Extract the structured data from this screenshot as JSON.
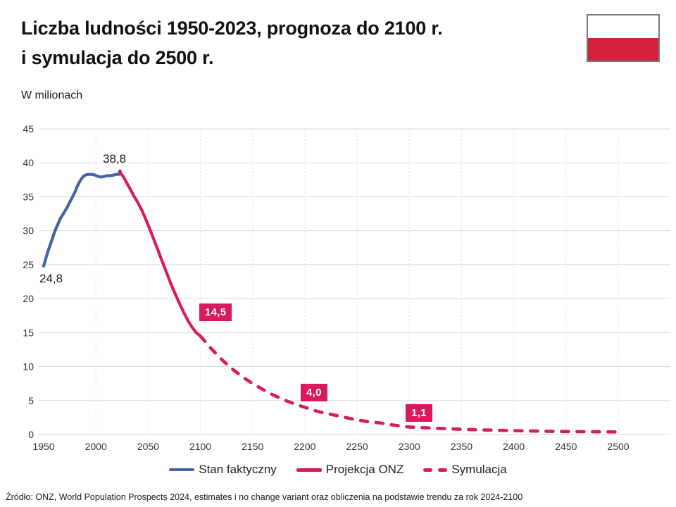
{
  "header": {
    "title_line1": "Liczba ludności 1950-2023, prognoza do 2100 r.",
    "title_line2": "i symulacja do 2500 r.",
    "subtitle": "W milionach"
  },
  "flag": {
    "country": "Poland",
    "top_color": "#ffffff",
    "bottom_color": "#d4213d",
    "border_color": "#7a7a7a"
  },
  "footer": {
    "source": "Źródło: ONZ, World Population Prospects 2024, estimates i no change variant oraz obliczenia na podstawie trendu za rok 2024-2100"
  },
  "chart_data": {
    "type": "line",
    "title": "Liczba ludności 1950-2023, prognoza do 2100 r. i symulacja do 2500 r.",
    "xlabel": "",
    "ylabel": "W milionach",
    "xlim": [
      1950,
      2500
    ],
    "ylim": [
      0,
      45
    ],
    "x_ticks": [
      1950,
      2000,
      2050,
      2100,
      2150,
      2200,
      2250,
      2300,
      2350,
      2400,
      2450,
      2500
    ],
    "y_ticks": [
      0,
      5,
      10,
      15,
      20,
      25,
      30,
      35,
      40,
      45
    ],
    "grid": true,
    "legend_position": "bottom",
    "colors": {
      "actual": "#4661a4",
      "projection": "#d91a5f",
      "grid_h": "#d9d9d9",
      "grid_v": "#e1e1e1",
      "tick_label": "#333333"
    },
    "series": [
      {
        "name": "Stan faktyczny",
        "color": "#4661a4",
        "style": "solid",
        "points": [
          [
            1950,
            24.8
          ],
          [
            1952,
            25.9
          ],
          [
            1954,
            26.9
          ],
          [
            1956,
            27.8
          ],
          [
            1958,
            28.7
          ],
          [
            1960,
            29.6
          ],
          [
            1962,
            30.4
          ],
          [
            1964,
            31.1
          ],
          [
            1966,
            31.8
          ],
          [
            1968,
            32.3
          ],
          [
            1970,
            32.8
          ],
          [
            1972,
            33.3
          ],
          [
            1974,
            33.9
          ],
          [
            1976,
            34.5
          ],
          [
            1978,
            35.1
          ],
          [
            1980,
            35.7
          ],
          [
            1982,
            36.5
          ],
          [
            1984,
            37.1
          ],
          [
            1986,
            37.6
          ],
          [
            1988,
            38.0
          ],
          [
            1990,
            38.2
          ],
          [
            1993,
            38.3
          ],
          [
            1996,
            38.3
          ],
          [
            1999,
            38.2
          ],
          [
            2002,
            38.0
          ],
          [
            2005,
            37.9
          ],
          [
            2008,
            38.0
          ],
          [
            2011,
            38.1
          ],
          [
            2014,
            38.1
          ],
          [
            2017,
            38.2
          ],
          [
            2020,
            38.3
          ],
          [
            2022,
            38.3
          ],
          [
            2023,
            38.8
          ]
        ]
      },
      {
        "name": "Projekcja ONZ",
        "color": "#d91a5f",
        "style": "solid",
        "points": [
          [
            2023,
            38.8
          ],
          [
            2024,
            38.4
          ],
          [
            2026,
            38.0
          ],
          [
            2028,
            37.5
          ],
          [
            2030,
            36.9
          ],
          [
            2033,
            36.1
          ],
          [
            2036,
            35.2
          ],
          [
            2040,
            34.2
          ],
          [
            2044,
            33.0
          ],
          [
            2048,
            31.6
          ],
          [
            2052,
            30.1
          ],
          [
            2056,
            28.5
          ],
          [
            2060,
            26.9
          ],
          [
            2064,
            25.3
          ],
          [
            2068,
            23.7
          ],
          [
            2072,
            22.1
          ],
          [
            2076,
            20.7
          ],
          [
            2080,
            19.3
          ],
          [
            2084,
            18.0
          ],
          [
            2088,
            16.8
          ],
          [
            2092,
            15.8
          ],
          [
            2096,
            15.0
          ],
          [
            2100,
            14.5
          ]
        ]
      },
      {
        "name": "Symulacja",
        "color": "#d91a5f",
        "style": "dashed",
        "points": [
          [
            2100,
            14.5
          ],
          [
            2110,
            12.7
          ],
          [
            2120,
            11.1
          ],
          [
            2130,
            9.7
          ],
          [
            2140,
            8.5
          ],
          [
            2150,
            7.5
          ],
          [
            2160,
            6.6
          ],
          [
            2170,
            5.8
          ],
          [
            2180,
            5.1
          ],
          [
            2190,
            4.5
          ],
          [
            2200,
            4.0
          ],
          [
            2212,
            3.4
          ],
          [
            2224,
            3.0
          ],
          [
            2236,
            2.6
          ],
          [
            2248,
            2.2
          ],
          [
            2260,
            1.9
          ],
          [
            2272,
            1.7
          ],
          [
            2284,
            1.4
          ],
          [
            2300,
            1.1
          ],
          [
            2320,
            0.95
          ],
          [
            2340,
            0.82
          ],
          [
            2360,
            0.72
          ],
          [
            2380,
            0.63
          ],
          [
            2400,
            0.56
          ],
          [
            2425,
            0.49
          ],
          [
            2450,
            0.44
          ],
          [
            2475,
            0.4
          ],
          [
            2500,
            0.37
          ]
        ]
      }
    ],
    "annotations": [
      {
        "text": "24,8",
        "year": 1950,
        "value": 24.8,
        "style": "plain"
      },
      {
        "text": "38,8",
        "year": 2023,
        "value": 38.8,
        "style": "plain"
      },
      {
        "text": "14,5",
        "year": 2100,
        "value": 14.5,
        "style": "badge"
      },
      {
        "text": "4,0",
        "year": 2200,
        "value": 4.0,
        "style": "badge"
      },
      {
        "text": "1,1",
        "year": 2300,
        "value": 1.1,
        "style": "badge"
      }
    ]
  }
}
